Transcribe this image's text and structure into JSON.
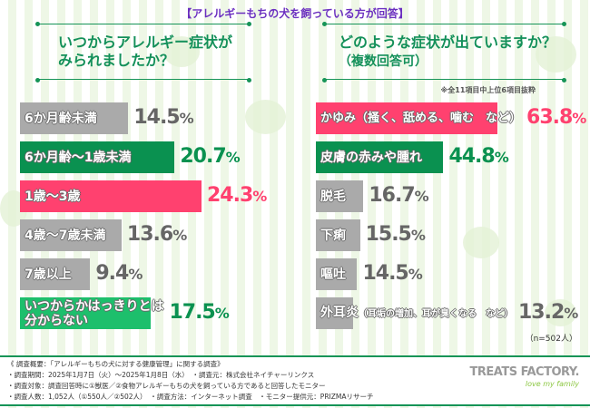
{
  "header": {
    "note": "【アレルギーもちの犬を飼っている方が回答】"
  },
  "left": {
    "question": [
      "いつからアレルギー症状が",
      "みられましたか？"
    ],
    "items": [
      {
        "label": "6か月齢未満",
        "value": "14.5",
        "color": "#aaaaaa",
        "text_color": "#666666"
      },
      {
        "label": "6か月齢〜1歳未満",
        "value": "20.7",
        "color": "#0a9150",
        "text_color": "#0a9150"
      },
      {
        "label": "1歳〜3歳",
        "value": "24.3",
        "color": "#ff416f",
        "text_color": "#ff416f"
      },
      {
        "label": "4歳〜7歳未満",
        "value": "13.6",
        "color": "#aaaaaa",
        "text_color": "#666666"
      },
      {
        "label": "7歳以上",
        "value": "9.4",
        "color": "#aaaaaa",
        "text_color": "#666666"
      },
      {
        "label": "いつからかはっきりとは\n分からない",
        "value": "17.5",
        "color": "#1dbf6c",
        "text_color": "#0a9150"
      }
    ]
  },
  "right": {
    "question": "どのような症状が出ていますか？",
    "sub": "（複数回答可）",
    "note": "※全11項目中上位6項目抜粋",
    "items": [
      {
        "label": "かゆみ（掻く、舐める、噛む　など）",
        "value": "63.8",
        "color": "#ff416f",
        "text_color": "#ff416f"
      },
      {
        "label": "皮膚の赤みや腫れ",
        "value": "44.8",
        "color": "#0a9150",
        "text_color": "#0a9150"
      },
      {
        "label": "脱毛",
        "value": "16.7",
        "color": "#aaaaaa",
        "text_color": "#666666"
      },
      {
        "label": "下痢",
        "value": "15.5",
        "color": "#aaaaaa",
        "text_color": "#666666"
      },
      {
        "label": "嘔吐",
        "value": "14.5",
        "color": "#aaaaaa",
        "text_color": "#666666"
      },
      {
        "label": "外耳炎",
        "label_small": "（耳垢の増加、耳が臭くなる　など）",
        "value": "13.2",
        "color": "#aaaaaa",
        "text_color": "#666666"
      }
    ],
    "n": "（n=502人）"
  },
  "footer": {
    "lines": [
      "《 調査概要：「アレルギーもちの犬に対する健康管理」に関する調査》",
      "・調査期間：2025年1月7日（火）〜2025年1月8日（水）　・調査元：株式会社ネイチャーリンクス",
      "・調査対象：調査回答時に①獣医／②食物アレルギーもちの犬を飼っている方であると回答したモニター",
      "・調査人数：1,052人（①550人／②502人）　・調査方法：インターネット調査　・モニター提供元：PRIZMAリサーチ"
    ],
    "logo": "TREATS FACTORY.",
    "logo_tag": "love my family"
  }
}
